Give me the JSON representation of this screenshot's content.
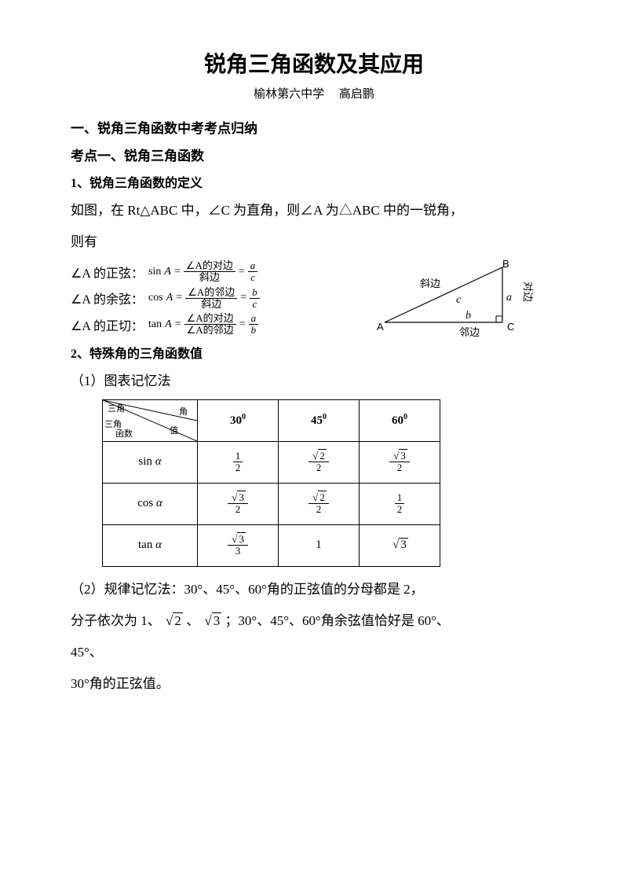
{
  "title": "锐角三角函数及其应用",
  "subtitle_school": "榆林第六中学",
  "subtitle_author": "高启鹏",
  "section1": "一、锐角三角函数中考考点归纳",
  "point1": "考点一、锐角三角函数",
  "def_heading": "1、锐角三角函数的定义",
  "def_text1": "如图，在 Rt△ABC 中，∠C 为直角，则∠A 为△ABC 中的一锐角，",
  "def_text2": "则有",
  "sin_label": "∠A 的正弦：",
  "sin_fn": "sin",
  "cos_label": "∠A 的余弦：",
  "cos_fn": "cos",
  "tan_label": "∠A 的正切：",
  "tan_fn": "tan",
  "var_A": "A",
  "eq": "=",
  "num_sin": "∠A的对边",
  "num_cos": "∠A的邻边",
  "num_tan_top": "∠A的对边",
  "num_tan_bot": "∠A的邻边",
  "den_hyp": "斜边",
  "frac_a": "a",
  "frac_b": "b",
  "frac_c": "c",
  "triangle": {
    "A": "A",
    "B": "B",
    "C": "C",
    "a": "a",
    "b": "b",
    "c": "c",
    "hyp": "斜边",
    "adj": "邻边",
    "opp": "对边",
    "stroke": "#000000"
  },
  "special_heading": "2、特殊角的三角函数值",
  "method1": "（1）图表记忆法",
  "table": {
    "corner_top": "三角",
    "corner_top2": "函数",
    "corner_mid": "三角",
    "corner_right": "角",
    "corner_mid_r": "值",
    "corner_bot": "函数",
    "angles": [
      "30",
      "45",
      "60"
    ],
    "deg": "0",
    "rows": [
      {
        "fn": "sin",
        "var": "α",
        "cells": [
          {
            "num": "1",
            "den": "2"
          },
          {
            "num_sqrt": "2",
            "den": "2"
          },
          {
            "num_sqrt": "3",
            "den": "2"
          }
        ]
      },
      {
        "fn": "cos",
        "var": "α",
        "cells": [
          {
            "num_sqrt": "3",
            "den": "2"
          },
          {
            "num_sqrt": "2",
            "den": "2"
          },
          {
            "num": "1",
            "den": "2"
          }
        ]
      },
      {
        "fn": "tan",
        "var": "α",
        "cells": [
          {
            "num_sqrt": "3",
            "den": "3"
          },
          {
            "plain": "1"
          },
          {
            "plain_sqrt": "3"
          }
        ]
      }
    ]
  },
  "method2_line1": "（2）规律记忆法：30°、45°、60°角的正弦值的分母都是 2，",
  "method2_line2_a": "分子依次为 1、",
  "method2_line2_b": "、",
  "method2_line2_c": "；30°、45°、60°角余弦值恰好是 60°、",
  "sqrt2": "2",
  "sqrt3": "3",
  "method2_line3": "45°、",
  "method2_line4": "30°角的正弦值。",
  "colors": {
    "text": "#000000",
    "bg": "#ffffff",
    "border": "#000000"
  }
}
